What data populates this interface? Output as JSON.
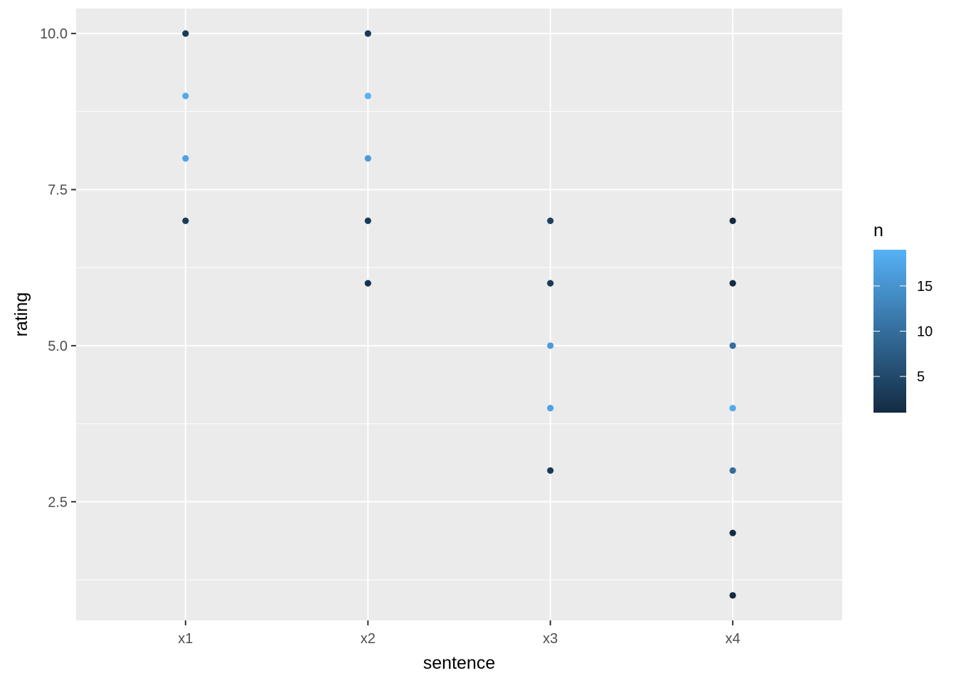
{
  "chart_data": {
    "type": "scatter",
    "title": "",
    "xlabel": "sentence",
    "ylabel": "rating",
    "categories": [
      "x1",
      "x2",
      "x3",
      "x4"
    ],
    "ylim": [
      0.6,
      10.4
    ],
    "y_ticks": [
      2.5,
      5.0,
      7.5,
      10.0
    ],
    "y_tick_labels": [
      "2.5",
      "5.0",
      "7.5",
      "10.0"
    ],
    "grid": true,
    "color_legend": {
      "title": "n",
      "position": "right",
      "range": [
        1,
        19
      ],
      "ticks": [
        5,
        10,
        15
      ],
      "tick_labels": [
        "5",
        "10",
        "15"
      ],
      "low_color": "#132b43",
      "high_color": "#56b1f7"
    },
    "points": [
      {
        "x": "x1",
        "y": 10,
        "n": 3
      },
      {
        "x": "x1",
        "y": 9,
        "n": 18
      },
      {
        "x": "x1",
        "y": 8,
        "n": 17
      },
      {
        "x": "x1",
        "y": 7,
        "n": 3
      },
      {
        "x": "x2",
        "y": 10,
        "n": 3
      },
      {
        "x": "x2",
        "y": 9,
        "n": 19
      },
      {
        "x": "x2",
        "y": 8,
        "n": 16
      },
      {
        "x": "x2",
        "y": 7,
        "n": 3
      },
      {
        "x": "x2",
        "y": 6,
        "n": 2
      },
      {
        "x": "x3",
        "y": 7,
        "n": 4
      },
      {
        "x": "x3",
        "y": 6,
        "n": 3
      },
      {
        "x": "x3",
        "y": 5,
        "n": 16
      },
      {
        "x": "x3",
        "y": 4,
        "n": 17
      },
      {
        "x": "x3",
        "y": 3,
        "n": 3
      },
      {
        "x": "x4",
        "y": 7,
        "n": 1
      },
      {
        "x": "x4",
        "y": 6,
        "n": 1
      },
      {
        "x": "x4",
        "y": 5,
        "n": 10
      },
      {
        "x": "x4",
        "y": 4,
        "n": 18
      },
      {
        "x": "x4",
        "y": 3,
        "n": 10
      },
      {
        "x": "x4",
        "y": 2,
        "n": 1
      },
      {
        "x": "x4",
        "y": 1,
        "n": 1
      }
    ]
  }
}
